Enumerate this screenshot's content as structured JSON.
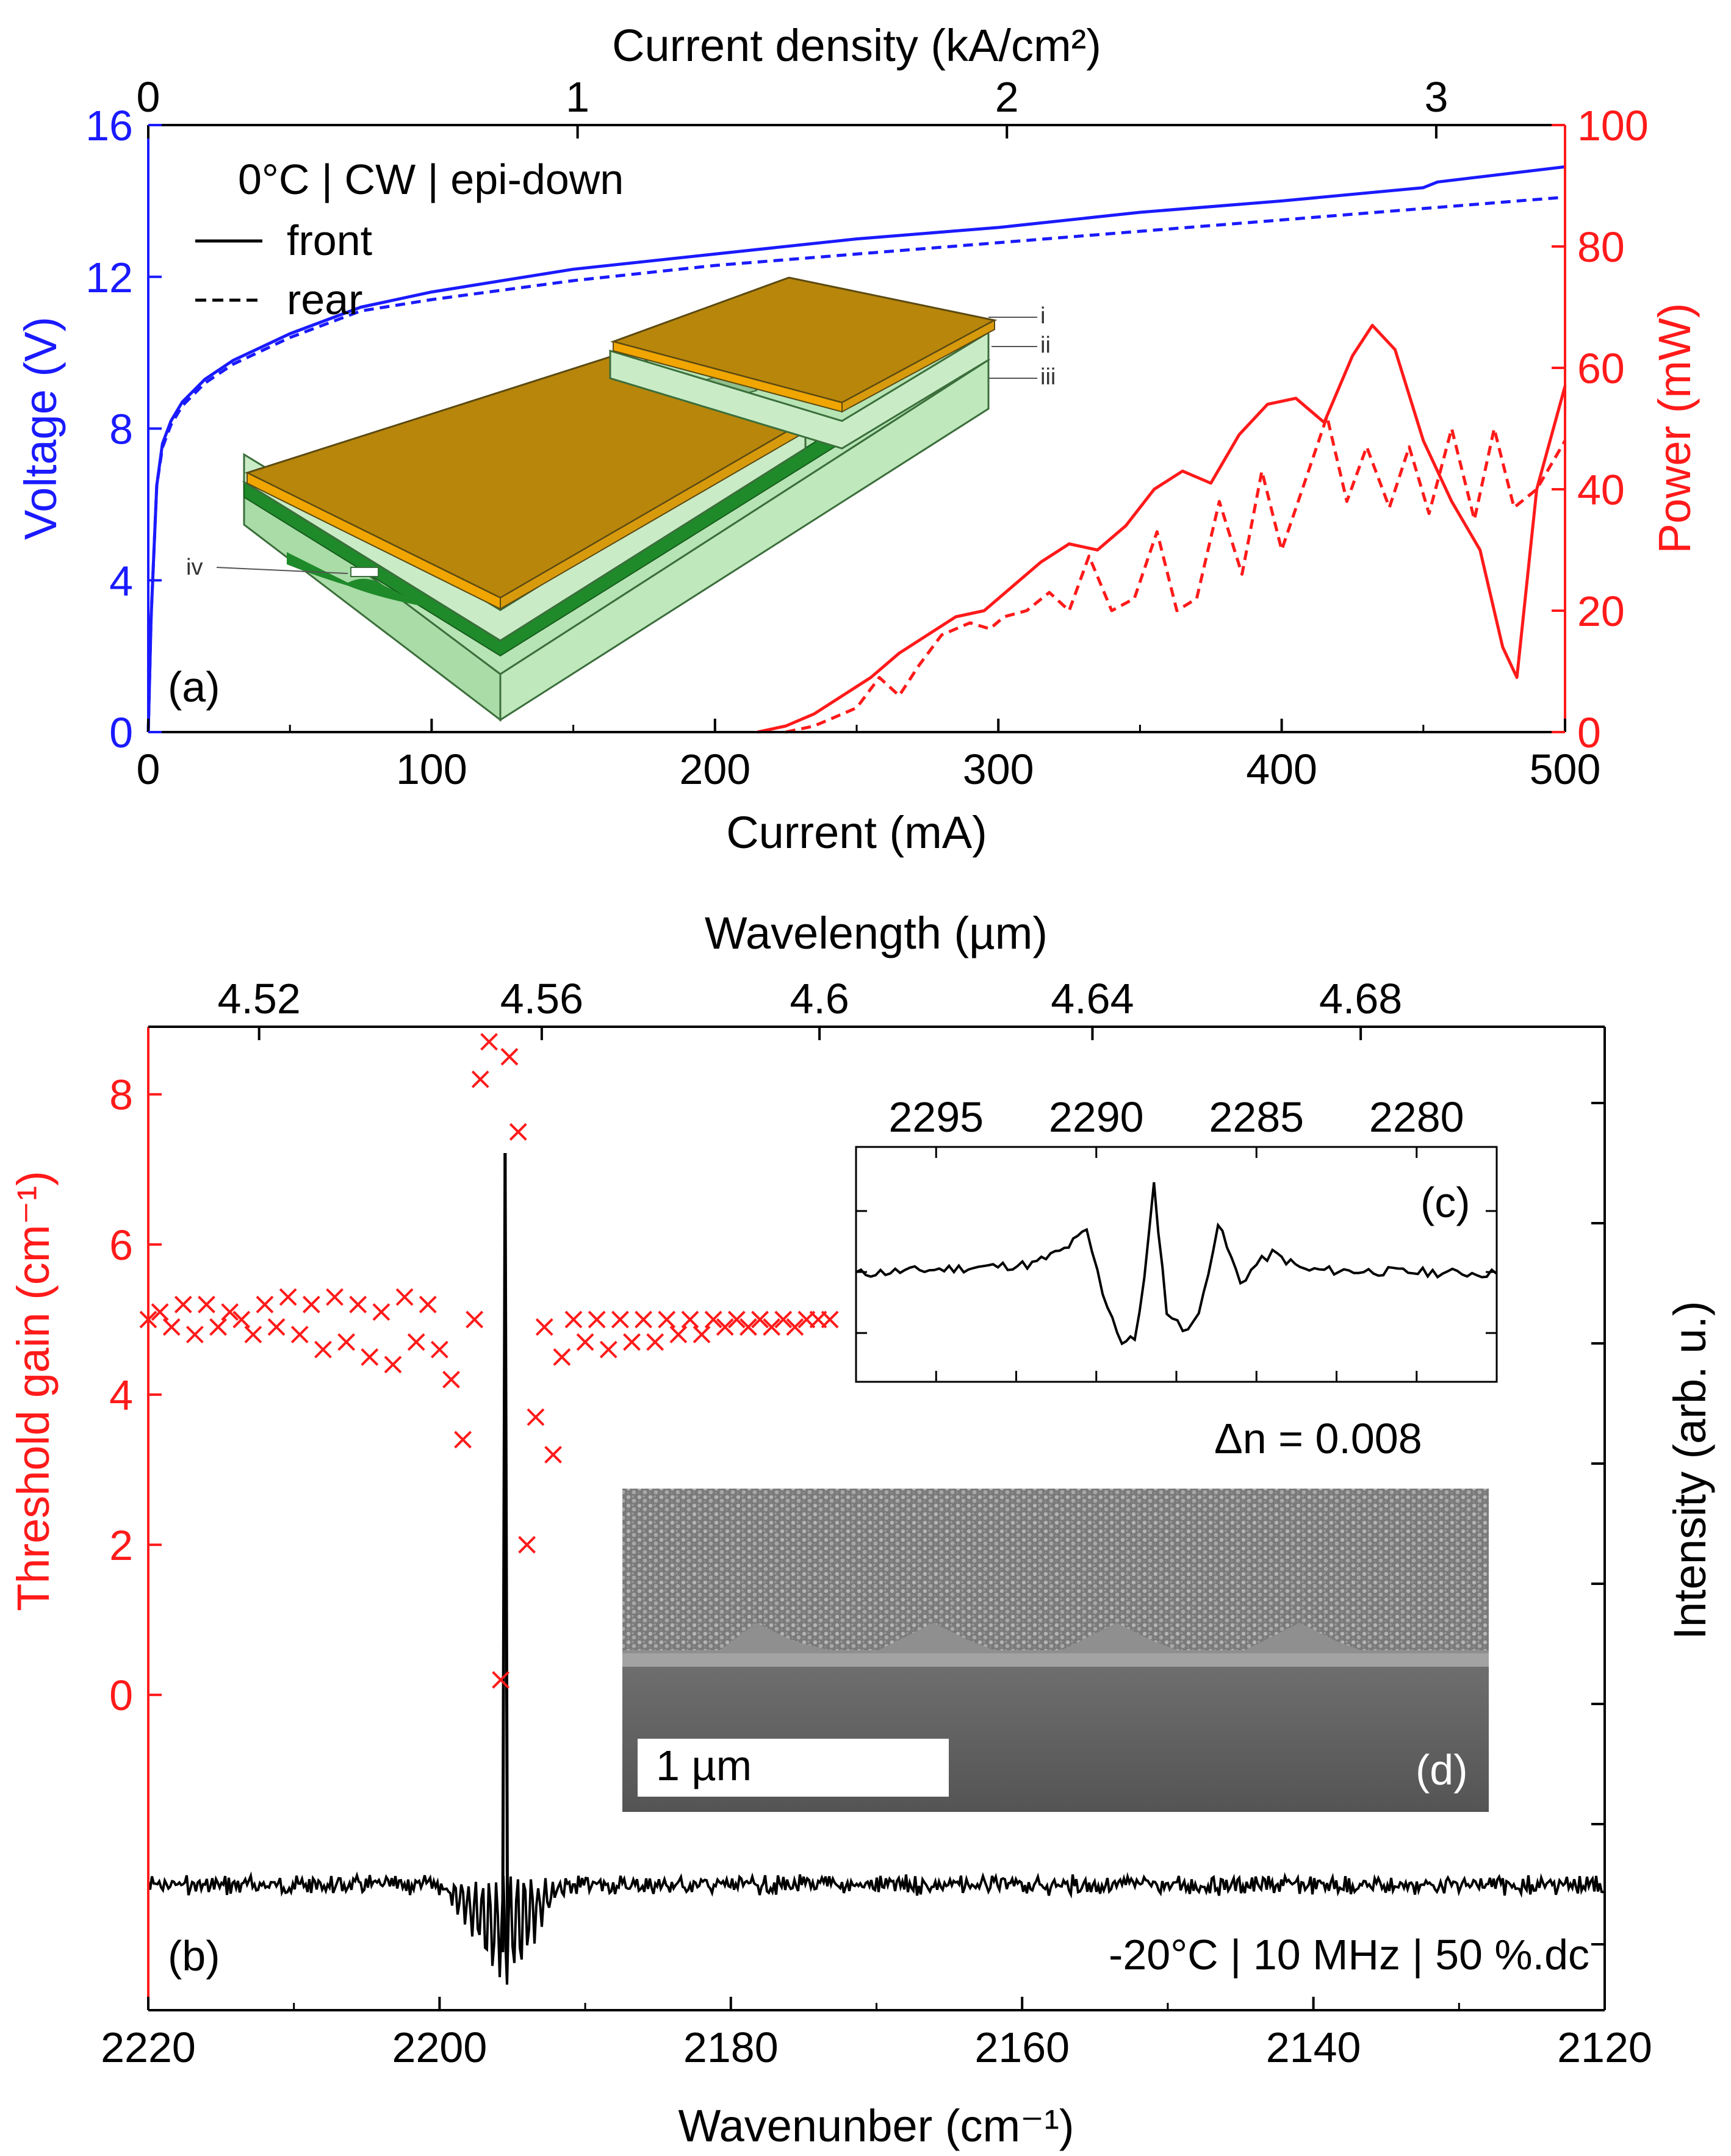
{
  "chart_data": [
    {
      "panel": "(a)",
      "type": "line",
      "x_axis_bottom": {
        "label": "Current (mA)",
        "range": [
          0,
          500
        ],
        "ticks": [
          "0",
          "100",
          "200",
          "300",
          "400",
          "500"
        ]
      },
      "x_axis_top": {
        "label": "Current density (kA/cm²)",
        "range": [
          0,
          3.3
        ],
        "ticks": [
          "0",
          "1",
          "2",
          "3"
        ]
      },
      "y_axis_left": {
        "label": "Voltage (V)",
        "range": [
          0,
          16
        ],
        "ticks": [
          "0",
          "4",
          "8",
          "12",
          "16"
        ],
        "color": "#1a1aff"
      },
      "y_axis_right": {
        "label": "Power (mW)",
        "range": [
          0,
          100
        ],
        "ticks": [
          "0",
          "20",
          "40",
          "60",
          "80",
          "100"
        ],
        "color": "#ff1a1a"
      },
      "annotation": "0°C | CW | epi-down",
      "legend": [
        {
          "name": "front",
          "style": "solid"
        },
        {
          "name": "rear",
          "style": "dashed"
        }
      ],
      "inset_layer_labels": [
        "i",
        "ii",
        "iii",
        "iv"
      ],
      "series": [
        {
          "name": "Voltage front",
          "axis": "left",
          "style": "solid",
          "color": "#1a1aff",
          "x": [
            0,
            1,
            3,
            5,
            8,
            12,
            20,
            30,
            50,
            75,
            100,
            150,
            200,
            250,
            300,
            350,
            400,
            450,
            455,
            500
          ],
          "y": [
            0,
            3,
            6.5,
            7.6,
            8.2,
            8.7,
            9.3,
            9.8,
            10.5,
            11.2,
            11.6,
            12.2,
            12.6,
            13.0,
            13.3,
            13.7,
            14.0,
            14.35,
            14.5,
            14.9
          ]
        },
        {
          "name": "Voltage rear",
          "axis": "left",
          "style": "dashed",
          "color": "#1a1aff",
          "x": [
            0,
            1,
            3,
            5,
            8,
            12,
            20,
            30,
            50,
            75,
            100,
            150,
            200,
            250,
            300,
            350,
            400,
            450,
            500
          ],
          "y": [
            0,
            3,
            6.5,
            7.5,
            8.1,
            8.6,
            9.2,
            9.7,
            10.4,
            11.1,
            11.4,
            11.9,
            12.3,
            12.6,
            12.9,
            13.2,
            13.5,
            13.8,
            14.1
          ]
        },
        {
          "name": "Power front",
          "axis": "right",
          "style": "solid",
          "color": "#ff1a1a",
          "x": [
            215,
            225,
            235,
            245,
            255,
            265,
            275,
            285,
            295,
            305,
            315,
            325,
            335,
            345,
            355,
            365,
            375,
            385,
            395,
            405,
            415,
            425,
            432,
            440,
            450,
            460,
            470,
            478,
            483,
            490,
            500
          ],
          "y": [
            0,
            1,
            3,
            6,
            9,
            13,
            16,
            19,
            20,
            24,
            28,
            31,
            30,
            34,
            40,
            43,
            41,
            49,
            54,
            55,
            51,
            62,
            67,
            63,
            48,
            38,
            30,
            14,
            9,
            40,
            57
          ]
        },
        {
          "name": "Power rear",
          "axis": "right",
          "style": "dashed",
          "color": "#ff1a1a",
          "x": [
            225,
            235,
            240,
            250,
            258,
            265,
            272,
            280,
            290,
            297,
            302,
            310,
            318,
            325,
            332,
            340,
            348,
            356,
            363,
            370,
            378,
            386,
            393,
            400,
            408,
            416,
            423,
            430,
            438,
            445,
            452,
            460,
            468,
            475,
            482,
            490,
            500
          ],
          "y": [
            0,
            1,
            2,
            4,
            9,
            6,
            11,
            16,
            18,
            17,
            19,
            20,
            23,
            20,
            29,
            20,
            22,
            33,
            20,
            22,
            38,
            26,
            43,
            30,
            41,
            52,
            38,
            47,
            37,
            47,
            36,
            50,
            35,
            50,
            37,
            40,
            48
          ]
        }
      ]
    },
    {
      "panel": "(b)",
      "type": "scatter",
      "x_axis_bottom": {
        "label": "Wavenunber (cm⁻¹)",
        "range": [
          2220,
          2120
        ],
        "ticks": [
          "2220",
          "2200",
          "2180",
          "2160",
          "2140",
          "2120"
        ]
      },
      "x_axis_top": {
        "label": "Wavelength (µm)",
        "ticks": [
          "4.52",
          "4.56",
          "4.6",
          "4.64",
          "4.68"
        ]
      },
      "y_axis_left": {
        "label": "Threshold gain (cm⁻¹)",
        "range": [
          -4.2,
          8.9
        ],
        "ticks": [
          "0",
          "2",
          "4",
          "6",
          "8"
        ],
        "color": "#ff1a1a"
      },
      "y_axis_right": {
        "label": "Intensity (arb. u.)"
      },
      "annotation": "-20°C | 10 MHz | 50 %.dc",
      "threshold_gain_points": {
        "x": [
          2220,
          2219.2,
          2218.4,
          2217.6,
          2216.8,
          2216,
          2215.2,
          2214.4,
          2213.6,
          2212.8,
          2212,
          2211.2,
          2210.4,
          2209.6,
          2208.8,
          2208,
          2207.2,
          2206.4,
          2205.6,
          2204.8,
          2204,
          2203.2,
          2202.4,
          2201.6,
          2200.8,
          2200,
          2199.2,
          2198.4,
          2197.6,
          2197.2,
          2196.6,
          2195.8,
          2195.2,
          2194.6,
          2194,
          2193.4,
          2192.8,
          2192.2,
          2191.6,
          2190.8,
          2190,
          2189.2,
          2188.4,
          2187.6,
          2186.8,
          2186,
          2185.2,
          2184.4,
          2183.6,
          2182.8,
          2182,
          2181.2,
          2180.4,
          2179.6,
          2178.8,
          2178,
          2177.2,
          2176.4,
          2175.6,
          2174.8,
          2174,
          2173.2
        ],
        "y": [
          5.0,
          5.1,
          4.9,
          5.2,
          4.8,
          5.2,
          4.9,
          5.1,
          5.0,
          4.8,
          5.2,
          4.9,
          5.3,
          4.8,
          5.2,
          4.6,
          5.3,
          4.7,
          5.2,
          4.5,
          5.1,
          4.4,
          5.3,
          4.7,
          5.2,
          4.6,
          4.2,
          3.4,
          5.0,
          8.2,
          8.7,
          0.2,
          8.5,
          7.5,
          2.0,
          3.7,
          4.9,
          3.2,
          4.5,
          5.0,
          4.7,
          5.0,
          4.6,
          5.0,
          4.7,
          5.0,
          4.7,
          5.0,
          4.8,
          5.0,
          4.8,
          5.0,
          4.9,
          5.0,
          4.9,
          5.0,
          4.9,
          5.0,
          4.9,
          5.0,
          5.0,
          5.0
        ]
      },
      "intensity_spectrum": {
        "peak_wavenumber": 2195.5,
        "baseline": "noise",
        "units": "arb. u."
      }
    },
    {
      "panel": "(c)",
      "type": "line",
      "x_axis_top": {
        "ticks": [
          "2295",
          "2290",
          "2285",
          "2280"
        ],
        "range": [
          2297.5,
          2277.5
        ]
      },
      "annotation": "Δn = 0.008",
      "spectrum": {
        "x": [
          2297.5,
          2292,
          2291,
          2290.3,
          2289.8,
          2289.2,
          2288.8,
          2288.5,
          2288.2,
          2287.8,
          2287.3,
          2286.8,
          2286.2,
          2285.5,
          2285,
          2284.5,
          2283.5,
          2277.5
        ],
        "y": [
          0.45,
          0.5,
          0.58,
          0.68,
          0.35,
          0.08,
          0.1,
          0.42,
          0.92,
          0.25,
          0.15,
          0.22,
          0.72,
          0.4,
          0.5,
          0.56,
          0.47,
          0.45
        ]
      }
    },
    {
      "panel": "(d)",
      "type": "image",
      "scale_bar": "1 µm"
    }
  ]
}
